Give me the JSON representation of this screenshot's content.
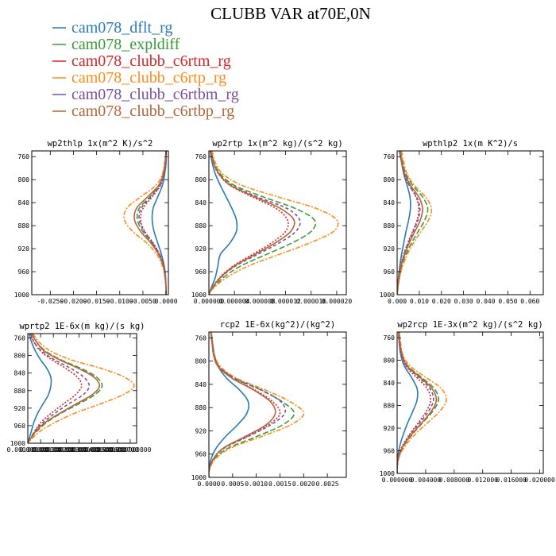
{
  "figure": {
    "title": "CLUBB VAR at70E,0N"
  },
  "legend": [
    {
      "name": "cam078_dflt_rg",
      "color": "#2a7ab8",
      "dash": "solid"
    },
    {
      "name": "cam078_expldiff",
      "color": "#3c9a3c",
      "dash": "longdash"
    },
    {
      "name": "cam078_clubb_c6rtm_rg",
      "color": "#d62728",
      "dash": "dot"
    },
    {
      "name": "cam078_clubb_c6rtp_rg",
      "color": "#ff8c1a",
      "dash": "dashdot"
    },
    {
      "name": "cam078_clubb_c6rtbm_rg",
      "color": "#7b4fa0",
      "dash": "dash"
    },
    {
      "name": "cam078_clubb_c6rtbp_rg",
      "color": "#b5653a",
      "dash": "solid"
    }
  ],
  "chart_data": [
    {
      "type": "line",
      "title": "wp2thlp  1x(m^2 K)/s^2",
      "xlim": [
        -0.029,
        0.0005
      ],
      "ylim": [
        1000,
        750
      ],
      "yticks": [
        760,
        800,
        840,
        880,
        920,
        960,
        1000
      ],
      "xticks": [
        "-0.0250",
        "-0.0200",
        "-0.0150",
        "-0.0100",
        "-0.0050",
        "0.0000"
      ],
      "xtick_values": [
        -0.025,
        -0.02,
        -0.015,
        -0.01,
        -0.005,
        0
      ],
      "levels": [
        750,
        770,
        790,
        810,
        830,
        850,
        870,
        890,
        910,
        930,
        950,
        970,
        990,
        1000
      ],
      "series": [
        {
          "name": "cam078_dflt_rg",
          "values": [
            0,
            0,
            -0.0003,
            -0.0008,
            -0.0018,
            -0.0028,
            -0.003,
            -0.0026,
            -0.0018,
            -0.001,
            -0.0004,
            -0.0001,
            0,
            0
          ]
        },
        {
          "name": "cam078_expldiff",
          "values": [
            0,
            -0.0002,
            -0.0006,
            -0.0015,
            -0.0035,
            -0.0058,
            -0.0062,
            -0.005,
            -0.003,
            -0.0015,
            -0.0006,
            -0.0002,
            0,
            0
          ]
        },
        {
          "name": "cam078_clubb_c6rtm_rg",
          "values": [
            0,
            -0.0001,
            -0.0005,
            -0.0012,
            -0.003,
            -0.005,
            -0.0055,
            -0.0046,
            -0.0028,
            -0.0014,
            -0.0005,
            -0.0002,
            0,
            0
          ]
        },
        {
          "name": "cam078_clubb_c6rtp_rg",
          "values": [
            0,
            -0.0003,
            -0.0008,
            -0.0022,
            -0.0055,
            -0.0085,
            -0.009,
            -0.0072,
            -0.0042,
            -0.002,
            -0.0008,
            -0.0002,
            0,
            0
          ]
        },
        {
          "name": "cam078_clubb_c6rtbm_rg",
          "values": [
            0,
            -0.0001,
            -0.0005,
            -0.0013,
            -0.0033,
            -0.0054,
            -0.0058,
            -0.0047,
            -0.0029,
            -0.0014,
            -0.0005,
            -0.0002,
            0,
            0
          ]
        },
        {
          "name": "cam078_clubb_c6rtbp_rg",
          "values": [
            0,
            -0.0002,
            -0.0006,
            -0.0016,
            -0.004,
            -0.0064,
            -0.0068,
            -0.0055,
            -0.0033,
            -0.0016,
            -0.0006,
            -0.0002,
            0,
            0
          ]
        }
      ]
    },
    {
      "type": "line",
      "title": "wp2rtp  1x(m^2 kg)/(s^2 kg)",
      "xlim": [
        0,
        2.15e-05
      ],
      "ylim": [
        1000,
        750
      ],
      "yticks": [
        760,
        800,
        840,
        880,
        920,
        960,
        1000
      ],
      "xticks": [
        "0.000000",
        "0.000004",
        "0.000008",
        "0.000012",
        "0.000016",
        "0.000020"
      ],
      "xtick_values": [
        0,
        4e-06,
        8e-06,
        1.2e-05,
        1.6e-05,
        2e-05
      ],
      "levels": [
        750,
        770,
        790,
        810,
        830,
        850,
        870,
        890,
        910,
        930,
        950,
        970,
        990,
        1000
      ],
      "series": [
        {
          "name": "cam078_dflt_rg",
          "values": [
            2e-07,
            5e-07,
            1e-06,
            1.8e-06,
            2.7e-06,
            3.6e-06,
            4.3e-06,
            4.3e-06,
            3.3e-06,
            1.8e-06,
            1.4e-06,
            1e-06,
            3e-07,
            0
          ]
        },
        {
          "name": "cam078_expldiff",
          "values": [
            4e-07,
            8e-07,
            1.8e-06,
            4e-06,
            8.5e-06,
            1.35e-05,
            1.65e-05,
            1.6e-05,
            1.3e-05,
            9e-06,
            5e-06,
            2.3e-06,
            5e-07,
            0
          ]
        },
        {
          "name": "cam078_clubb_c6rtm_rg",
          "values": [
            3e-07,
            7e-07,
            1.5e-06,
            3.3e-06,
            6.8e-06,
            1.05e-05,
            1.23e-05,
            1.2e-05,
            9.8e-06,
            6.8e-06,
            3.8e-06,
            1.7e-06,
            4e-07,
            0
          ]
        },
        {
          "name": "cam078_clubb_c6rtp_rg",
          "values": [
            5e-07,
            1e-06,
            2.2e-06,
            5.2e-06,
            1.08e-05,
            1.68e-05,
            2e-05,
            1.95e-05,
            1.58e-05,
            1.1e-05,
            6.2e-06,
            2.8e-06,
            6e-07,
            0
          ]
        },
        {
          "name": "cam078_clubb_c6rtbm_rg",
          "values": [
            3e-07,
            7e-07,
            1.6e-06,
            3.6e-06,
            7.6e-06,
            1.22e-05,
            1.42e-05,
            1.36e-05,
            1.1e-05,
            7.6e-06,
            4.2e-06,
            1.9e-06,
            4e-07,
            0
          ]
        },
        {
          "name": "cam078_clubb_c6rtbp_rg",
          "values": [
            3e-07,
            7e-07,
            1.6e-06,
            3.4e-06,
            7.2e-06,
            1.12e-05,
            1.33e-05,
            1.28e-05,
            1.04e-05,
            7.2e-06,
            4e-06,
            1.8e-06,
            4e-07,
            0
          ]
        }
      ]
    },
    {
      "type": "line",
      "title": "wpthlp2  1x(m K^2)/s",
      "xlim": [
        0,
        0.066
      ],
      "ylim": [
        1000,
        750
      ],
      "yticks": [
        760,
        800,
        840,
        880,
        920,
        960,
        1000
      ],
      "xticks": [
        "0.000",
        "0.010",
        "0.020",
        "0.030",
        "0.040",
        "0.050",
        "0.060"
      ],
      "xtick_values": [
        0,
        0.01,
        0.02,
        0.03,
        0.04,
        0.05,
        0.06
      ],
      "levels": [
        750,
        770,
        790,
        810,
        830,
        850,
        870,
        890,
        910,
        930,
        950,
        970,
        990,
        1000
      ],
      "series": [
        {
          "name": "cam078_dflt_rg",
          "values": [
            0.001,
            0.002,
            0.003,
            0.0045,
            0.0058,
            0.006,
            0.0052,
            0.004,
            0.003,
            0.002,
            0.0012,
            0.0006,
            0.0002,
            0
          ]
        },
        {
          "name": "cam078_expldiff",
          "values": [
            0.0015,
            0.0025,
            0.004,
            0.007,
            0.0115,
            0.0138,
            0.0125,
            0.0095,
            0.0065,
            0.004,
            0.0022,
            0.001,
            0.0003,
            0
          ]
        },
        {
          "name": "cam078_clubb_c6rtm_rg",
          "values": [
            0.0012,
            0.002,
            0.0032,
            0.0055,
            0.0085,
            0.0098,
            0.009,
            0.007,
            0.0048,
            0.003,
            0.0016,
            0.0008,
            0.0002,
            0
          ]
        },
        {
          "name": "cam078_clubb_c6rtp_rg",
          "values": [
            0.002,
            0.003,
            0.0045,
            0.0078,
            0.0128,
            0.0155,
            0.0142,
            0.0108,
            0.0074,
            0.0046,
            0.0025,
            0.0011,
            0.0003,
            0
          ]
        },
        {
          "name": "cam078_clubb_c6rtbm_rg",
          "values": [
            0.0012,
            0.002,
            0.0032,
            0.0055,
            0.0088,
            0.0103,
            0.0094,
            0.0073,
            0.005,
            0.0031,
            0.0017,
            0.0008,
            0.0002,
            0
          ]
        },
        {
          "name": "cam078_clubb_c6rtbp_rg",
          "values": [
            0.0013,
            0.0022,
            0.0035,
            0.006,
            0.0098,
            0.0115,
            0.0105,
            0.008,
            0.0055,
            0.0034,
            0.0018,
            0.0008,
            0.0002,
            0
          ]
        }
      ]
    },
    {
      "type": "line",
      "title": "wprtp2  1E-6x(m kg)/(s kg)",
      "xlim": [
        0,
        8.5e-07
      ],
      "ylim": [
        1000,
        750
      ],
      "yticks": [
        760,
        800,
        840,
        880,
        920,
        960,
        1000
      ],
      "xticks": [
        "0.000000000",
        "0.000000100",
        "0.000000200",
        "0.000000300",
        "0.000000400",
        "0.000000500",
        "0.000000600",
        "0.000000700",
        "0.000000800"
      ],
      "xtick_values": [
        0,
        1e-07,
        2e-07,
        3e-07,
        4e-07,
        5e-07,
        6e-07,
        7e-07,
        8e-07
      ],
      "levels": [
        750,
        770,
        790,
        810,
        830,
        850,
        870,
        890,
        910,
        930,
        950,
        970,
        990,
        1000
      ],
      "series": [
        {
          "name": "cam078_dflt_rg",
          "values": [
            1e-08,
            3e-08,
            6e-08,
            1e-07,
            1.5e-07,
            1.8e-07,
            1.8e-07,
            1.6e-07,
            1.2e-07,
            8e-08,
            5e-08,
            3e-08,
            1e-08,
            0
          ]
        },
        {
          "name": "cam078_expldiff",
          "values": [
            3e-08,
            7e-08,
            1.4e-07,
            2.6e-07,
            4.2e-07,
            5.4e-07,
            5.8e-07,
            5.2e-07,
            4e-07,
            2.7e-07,
            1.6e-07,
            8e-08,
            2e-08,
            0
          ]
        },
        {
          "name": "cam078_clubb_c6rtm_rg",
          "values": [
            2e-08,
            5e-08,
            1e-07,
            1.9e-07,
            3e-07,
            3.9e-07,
            4.2e-07,
            3.7e-07,
            2.8e-07,
            1.9e-07,
            1.1e-07,
            6e-08,
            2e-08,
            0
          ]
        },
        {
          "name": "cam078_clubb_c6rtp_rg",
          "values": [
            4e-08,
            9e-08,
            1.8e-07,
            3.4e-07,
            5.8e-07,
            7.6e-07,
            8.3e-07,
            7.4e-07,
            5.7e-07,
            3.8e-07,
            2.3e-07,
            1.1e-07,
            3e-08,
            0
          ]
        },
        {
          "name": "cam078_clubb_c6rtbm_rg",
          "values": [
            2e-08,
            5e-08,
            1.1e-07,
            2.1e-07,
            3.4e-07,
            4.4e-07,
            4.8e-07,
            4.3e-07,
            3.2e-07,
            2.2e-07,
            1.3e-07,
            6e-08,
            2e-08,
            0
          ]
        },
        {
          "name": "cam078_clubb_c6rtbp_rg",
          "values": [
            3e-08,
            7e-08,
            1.3e-07,
            2.5e-07,
            4e-07,
            5.2e-07,
            5.6e-07,
            5e-07,
            3.8e-07,
            2.6e-07,
            1.5e-07,
            7e-08,
            2e-08,
            0
          ]
        }
      ]
    },
    {
      "type": "line",
      "title": "rcp2  1E-6x(kg^2)/(kg^2)",
      "xlim": [
        0,
        0.0029
      ],
      "ylim": [
        1000,
        750
      ],
      "yticks": [
        760,
        800,
        840,
        880,
        920,
        960,
        1000
      ],
      "xticks": [
        "0.0000",
        "0.0005",
        "0.0010",
        "0.0015",
        "0.0020",
        "0.0025"
      ],
      "xtick_values": [
        0,
        0.0005,
        0.001,
        0.0015,
        0.002,
        0.0025
      ],
      "levels": [
        750,
        770,
        790,
        810,
        830,
        850,
        870,
        890,
        910,
        930,
        950,
        970,
        990,
        1000
      ],
      "series": [
        {
          "name": "cam078_dflt_rg",
          "values": [
            5e-05,
            8e-05,
            0.00012,
            0.0002,
            0.00038,
            0.00065,
            0.00083,
            0.0008,
            0.0006,
            0.00035,
            0.00015,
            4e-05,
            0,
            0
          ]
        },
        {
          "name": "cam078_expldiff",
          "values": [
            4e-05,
            7e-05,
            0.00011,
            0.00022,
            0.00055,
            0.0011,
            0.00155,
            0.0018,
            0.00155,
            0.001,
            0.0004,
            0.0001,
            0,
            0
          ]
        },
        {
          "name": "cam078_clubb_c6rtm_rg",
          "values": [
            4e-05,
            7e-05,
            0.0001,
            0.0002,
            0.0005,
            0.00098,
            0.00135,
            0.0015,
            0.00125,
            0.0008,
            0.0003,
            8e-05,
            0,
            0
          ]
        },
        {
          "name": "cam078_clubb_c6rtp_rg",
          "values": [
            5e-05,
            8e-05,
            0.00012,
            0.00025,
            0.0006,
            0.0012,
            0.00172,
            0.002,
            0.00172,
            0.0011,
            0.00045,
            0.00012,
            0,
            0
          ]
        },
        {
          "name": "cam078_clubb_c6rtbm_rg",
          "values": [
            4e-05,
            7e-05,
            0.00011,
            0.00022,
            0.00056,
            0.00112,
            0.00152,
            0.0016,
            0.0013,
            0.00082,
            0.00032,
            8e-05,
            0,
            0
          ]
        },
        {
          "name": "cam078_clubb_c6rtbp_rg",
          "values": [
            4e-05,
            7e-05,
            0.0001,
            0.0002,
            0.0005,
            0.00095,
            0.0013,
            0.0014,
            0.0012,
            0.00076,
            0.0003,
            8e-05,
            0,
            0
          ]
        }
      ]
    },
    {
      "type": "line",
      "title": "wp2rcp  1E-3x(m^2 kg)/(s^2 kg)",
      "xlim": [
        0,
        0.0205
      ],
      "ylim": [
        1000,
        750
      ],
      "yticks": [
        760,
        800,
        840,
        880,
        920,
        960,
        1000
      ],
      "xticks": [
        "0.000000",
        "0.004000",
        "0.008000",
        "0.012000",
        "0.016000",
        "0.020000"
      ],
      "xtick_values": [
        0,
        0.004,
        0.008,
        0.012,
        0.016,
        0.02
      ],
      "levels": [
        750,
        770,
        790,
        810,
        830,
        850,
        870,
        890,
        910,
        930,
        950,
        970,
        990,
        1000
      ],
      "series": [
        {
          "name": "cam078_dflt_rg",
          "values": [
            0.0002,
            0.0003,
            0.0005,
            0.001,
            0.002,
            0.0028,
            0.0028,
            0.0022,
            0.0015,
            0.0009,
            0.0004,
            0.0001,
            0,
            0
          ]
        },
        {
          "name": "cam078_expldiff",
          "values": [
            0.0002,
            0.0004,
            0.0007,
            0.0015,
            0.0034,
            0.0052,
            0.0058,
            0.005,
            0.0036,
            0.0022,
            0.001,
            0.0003,
            0,
            0
          ]
        },
        {
          "name": "cam078_clubb_c6rtm_rg",
          "values": [
            0.0002,
            0.0003,
            0.0006,
            0.0012,
            0.0027,
            0.0042,
            0.0047,
            0.0041,
            0.003,
            0.0018,
            0.0008,
            0.0002,
            0,
            0
          ]
        },
        {
          "name": "cam078_clubb_c6rtp_rg",
          "values": [
            0.0003,
            0.0005,
            0.0008,
            0.0018,
            0.004,
            0.0062,
            0.0069,
            0.006,
            0.0043,
            0.0026,
            0.0012,
            0.0003,
            0,
            0
          ]
        },
        {
          "name": "cam078_clubb_c6rtbm_rg",
          "values": [
            0.0002,
            0.0004,
            0.0006,
            0.0013,
            0.003,
            0.0046,
            0.0051,
            0.0044,
            0.0032,
            0.0019,
            0.0009,
            0.0002,
            0,
            0
          ]
        },
        {
          "name": "cam078_clubb_c6rtbp_rg",
          "values": [
            0.0002,
            0.0004,
            0.0007,
            0.0014,
            0.0032,
            0.0049,
            0.0055,
            0.0048,
            0.0035,
            0.0021,
            0.0009,
            0.0002,
            0,
            0
          ]
        }
      ]
    }
  ]
}
